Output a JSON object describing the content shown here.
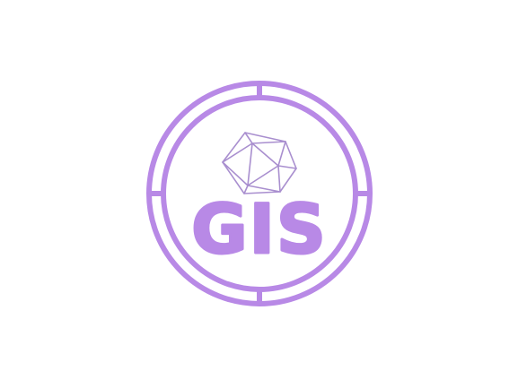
{
  "logo": {
    "wordmark": "GIS",
    "icon": "d20-polyhedron-icon",
    "emblem": "double-ring-emblem"
  },
  "colors": {
    "primary": "#b889e6",
    "wire": "#a98fcf",
    "background": "#ffffff"
  }
}
